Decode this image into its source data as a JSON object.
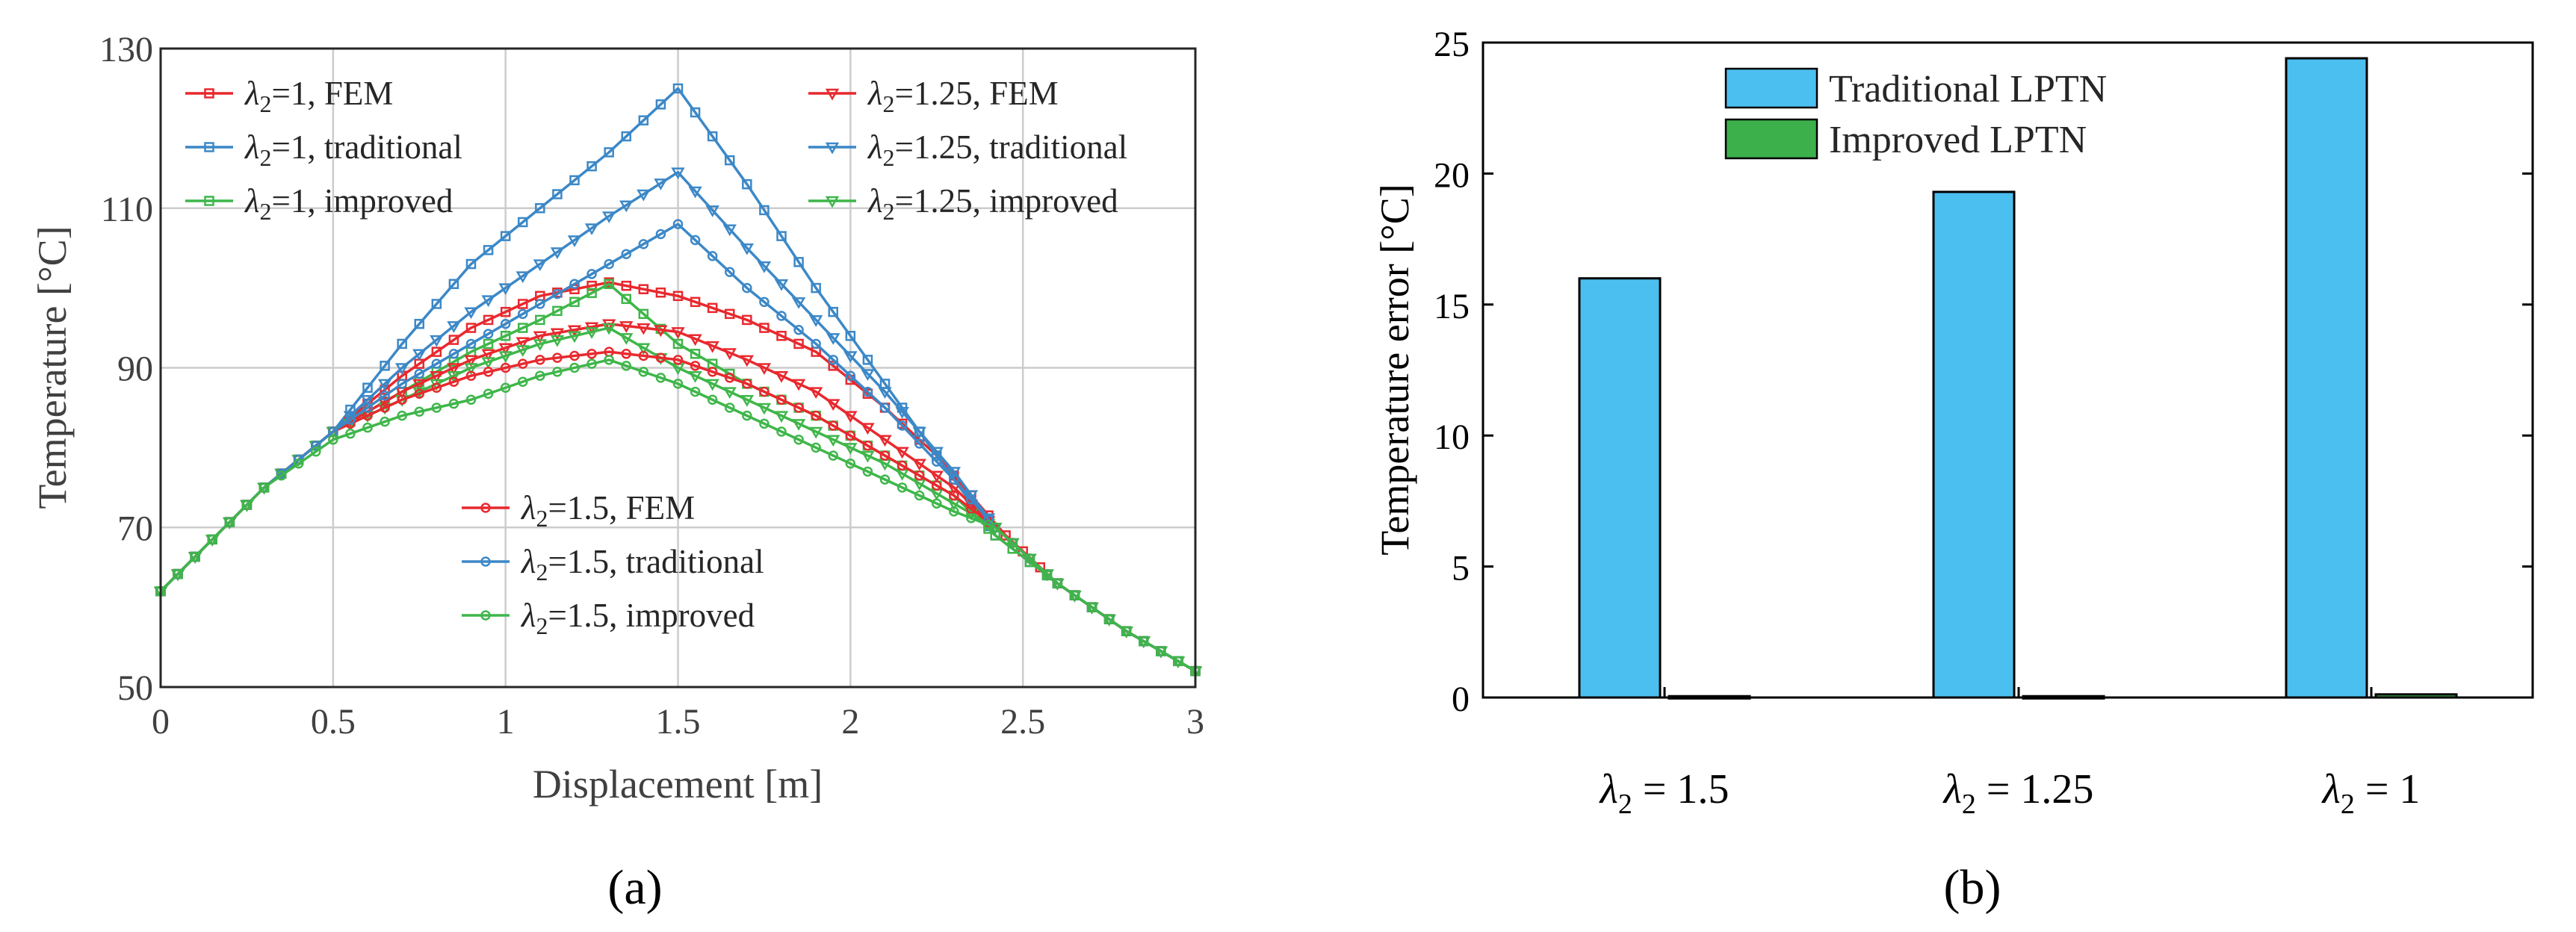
{
  "panels": {
    "a_label": "(a)",
    "b_label": "(b)"
  },
  "colors": {
    "fem": "#e8292e",
    "traditional": "#3c88c7",
    "improved": "#3fb64a",
    "bar_traditional": "#4bbfef",
    "bar_improved": "#3cb04a",
    "grid": "#cccccc",
    "axis": "#262626"
  },
  "chart_data": [
    {
      "id": "a",
      "type": "line",
      "xlabel": "Displacement [m]",
      "ylabel": "Temperature [°C]",
      "xlim": [
        0,
        3
      ],
      "ylim": [
        50,
        130
      ],
      "xticks": [
        0,
        0.5,
        1,
        1.5,
        2,
        2.5,
        3
      ],
      "xtick_labels": [
        "0",
        "0.5",
        "1",
        "1.5",
        "2",
        "2.5",
        "3"
      ],
      "yticks": [
        50,
        70,
        90,
        110,
        130
      ],
      "ytick_labels": [
        "50",
        "70",
        "90",
        "110",
        "130"
      ],
      "grid": true,
      "series": [
        {
          "name": "λ2=1, FEM",
          "lambda": "1",
          "kind": "FEM",
          "color_key": "fem",
          "marker": "square",
          "x": [
            0,
            0.3,
            0.5,
            0.7,
            0.9,
            1.1,
            1.3,
            1.5,
            1.7,
            1.9,
            2.1,
            2.25,
            2.35,
            2.45,
            2.6,
            2.8,
            3.0
          ],
          "y": [
            62,
            75,
            82,
            89,
            95,
            99,
            100.7,
            99,
            96,
            92,
            85,
            79,
            74,
            69,
            63,
            57,
            52
          ]
        },
        {
          "name": "λ2=1, traditional",
          "lambda": "1",
          "kind": "traditional",
          "color_key": "traditional",
          "marker": "square",
          "x": [
            0,
            0.3,
            0.5,
            0.7,
            0.9,
            1.1,
            1.3,
            1.5,
            1.7,
            1.9,
            2.1,
            2.3,
            2.42,
            2.6,
            2.8,
            3.0
          ],
          "y": [
            62,
            75,
            82,
            93,
            103,
            110,
            117,
            125,
            113,
            100,
            88,
            76,
            69,
            63,
            57,
            52
          ]
        },
        {
          "name": "λ2=1, improved",
          "lambda": "1",
          "kind": "improved",
          "color_key": "improved",
          "marker": "square",
          "x": [
            0,
            0.3,
            0.5,
            0.7,
            0.9,
            1.1,
            1.3,
            1.5,
            1.7,
            1.9,
            2.1,
            2.3,
            2.42,
            2.6,
            2.8,
            3.0
          ],
          "y": [
            62,
            75,
            82,
            87,
            92,
            96,
            100.5,
            93,
            88,
            84,
            79,
            74,
            69,
            63,
            57,
            52
          ]
        },
        {
          "name": "λ2=1.25, FEM",
          "lambda": "1.25",
          "kind": "FEM",
          "color_key": "fem",
          "marker": "triangle",
          "x": [
            0,
            0.3,
            0.5,
            0.7,
            0.9,
            1.1,
            1.3,
            1.5,
            1.7,
            1.9,
            2.1,
            2.3,
            2.42,
            2.6,
            2.8,
            3.0
          ],
          "y": [
            62,
            75,
            82,
            87,
            91,
            94,
            95.5,
            94.5,
            91,
            87,
            81,
            75,
            70,
            63,
            57,
            52
          ]
        },
        {
          "name": "λ2=1.25, traditional",
          "lambda": "1.25",
          "kind": "traditional",
          "color_key": "traditional",
          "marker": "triangle",
          "x": [
            0,
            0.3,
            0.5,
            0.7,
            0.9,
            1.1,
            1.3,
            1.5,
            1.7,
            1.9,
            2.1,
            2.3,
            2.42,
            2.6,
            2.8,
            3.0
          ],
          "y": [
            62,
            75,
            82,
            90,
            97,
            103,
            109,
            114.5,
            105,
            96,
            87,
            77,
            70,
            63,
            57,
            52
          ]
        },
        {
          "name": "λ2=1.25, improved",
          "lambda": "1.25",
          "kind": "improved",
          "color_key": "improved",
          "marker": "triangle",
          "x": [
            0,
            0.3,
            0.5,
            0.7,
            0.9,
            1.1,
            1.3,
            1.5,
            1.7,
            1.9,
            2.1,
            2.3,
            2.42,
            2.6,
            2.8,
            3.0
          ],
          "y": [
            62,
            75,
            82,
            86,
            90,
            93,
            95,
            90,
            86,
            82,
            78,
            73,
            70,
            63,
            57,
            52
          ]
        },
        {
          "name": "λ2=1.5, FEM",
          "lambda": "1.5",
          "kind": "FEM",
          "color_key": "fem",
          "marker": "circle",
          "x": [
            0,
            0.3,
            0.5,
            0.7,
            0.9,
            1.1,
            1.3,
            1.5,
            1.7,
            1.9,
            2.1,
            2.3,
            2.42,
            2.6,
            2.8,
            3.0
          ],
          "y": [
            62,
            75,
            82,
            86,
            89,
            91,
            92,
            91,
            88,
            84,
            79,
            74,
            70,
            63,
            57,
            52
          ]
        },
        {
          "name": "λ2=1.5, traditional",
          "lambda": "1.5",
          "kind": "traditional",
          "color_key": "traditional",
          "marker": "circle",
          "x": [
            0,
            0.3,
            0.5,
            0.7,
            0.9,
            1.1,
            1.3,
            1.5,
            1.7,
            1.9,
            2.1,
            2.3,
            2.42,
            2.6,
            2.8,
            3.0
          ],
          "y": [
            62,
            75,
            82,
            88,
            93,
            98,
            103,
            108,
            100,
            93,
            85,
            76,
            70,
            63,
            57,
            52
          ]
        },
        {
          "name": "λ2=1.5, improved",
          "lambda": "1.5",
          "kind": "improved",
          "color_key": "improved",
          "marker": "circle",
          "x": [
            0,
            0.3,
            0.5,
            0.7,
            0.9,
            1.1,
            1.3,
            1.5,
            1.7,
            1.9,
            2.1,
            2.3,
            2.42,
            2.6,
            2.8,
            3.0
          ],
          "y": [
            62,
            75,
            81,
            84,
            86,
            89,
            91,
            88,
            84,
            80,
            76,
            72,
            70,
            63,
            57,
            52
          ]
        }
      ],
      "legend_placement": "top-left, top-right, center-left"
    },
    {
      "id": "b",
      "type": "bar",
      "ylabel": "Temperature error [°C]",
      "ylim": [
        0,
        25
      ],
      "yticks": [
        0,
        5,
        10,
        15,
        20,
        25
      ],
      "ytick_labels": [
        "0",
        "5",
        "10",
        "15",
        "20",
        "25"
      ],
      "grid": false,
      "categories": [
        "λ2 = 1.5",
        "λ2 = 1.25",
        "λ2 = 1"
      ],
      "category_parts": [
        {
          "sym": "λ",
          "sub": "2",
          "rest": " = 1.5"
        },
        {
          "sym": "λ",
          "sub": "2",
          "rest": " = 1.25"
        },
        {
          "sym": "λ",
          "sub": "2",
          "rest": " = 1"
        }
      ],
      "series": [
        {
          "name": "Traditional LPTN",
          "values": [
            16.0,
            19.3,
            24.4
          ],
          "color_key": "bar_traditional"
        },
        {
          "name": "Improved LPTN",
          "values": [
            0.05,
            0.05,
            0.12
          ],
          "color_key": "bar_improved"
        }
      ],
      "legend_placement": "top-center"
    }
  ]
}
